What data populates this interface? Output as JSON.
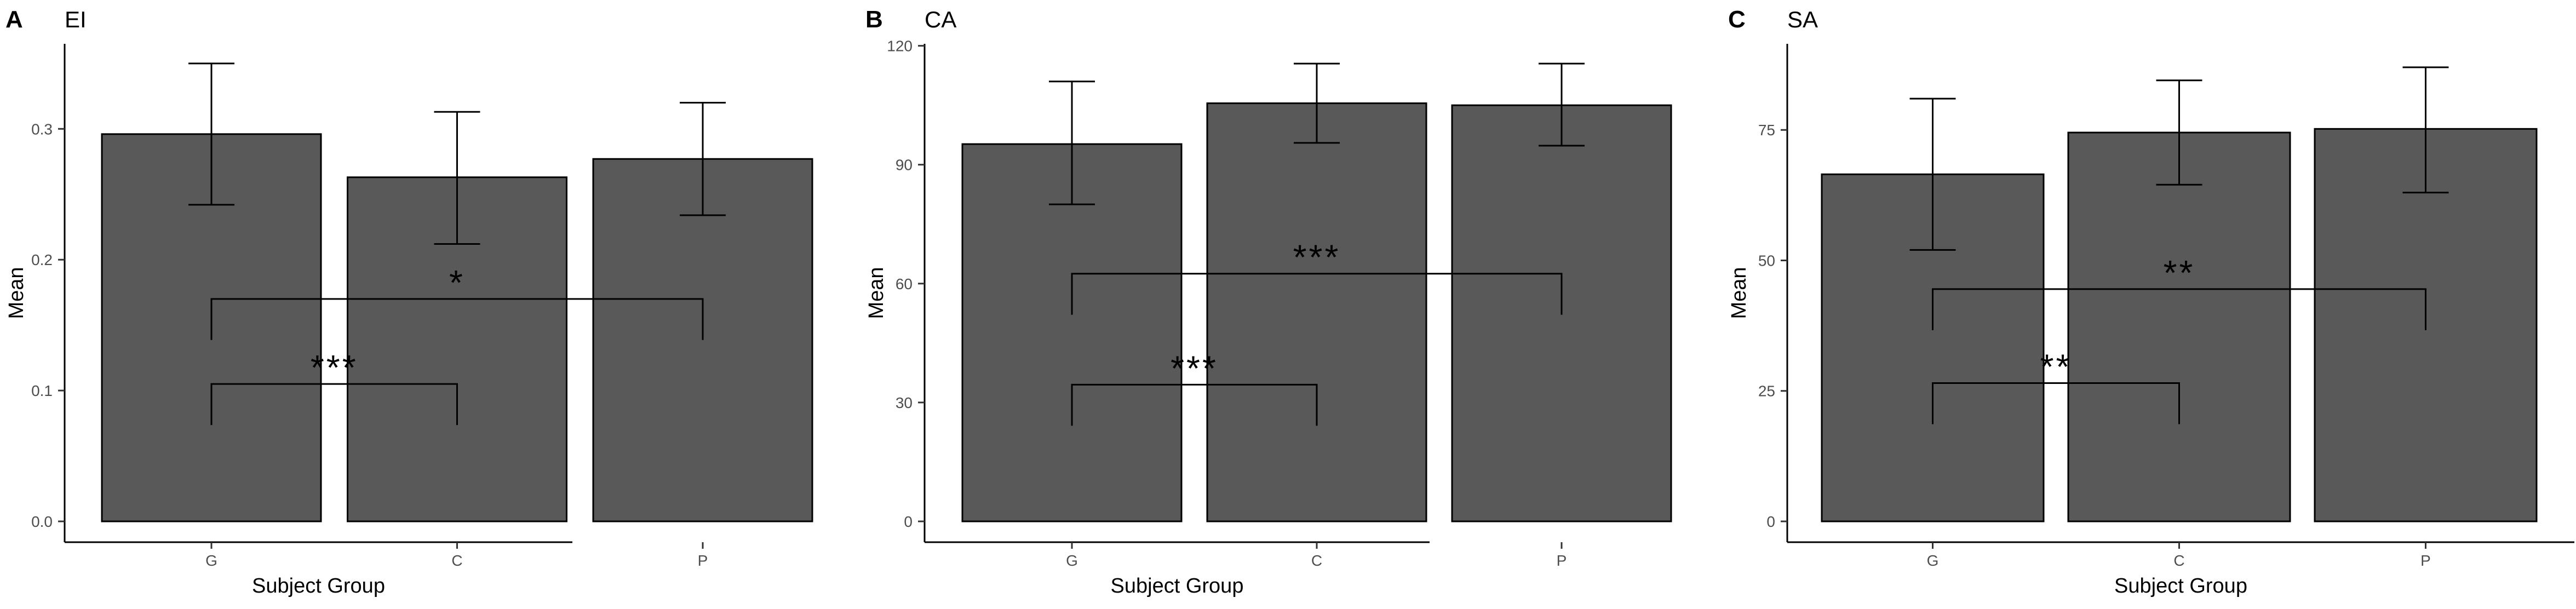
{
  "chart_data": [
    {
      "type": "bar",
      "panel_letter": "A",
      "title": "EI",
      "xlabel": "Subject Group",
      "ylabel": "Mean",
      "categories": [
        "G",
        "C",
        "P"
      ],
      "values": [
        0.296,
        0.263,
        0.277
      ],
      "error_upper": [
        0.35,
        0.313,
        0.32
      ],
      "error_lower": [
        0.242,
        0.212,
        0.234
      ],
      "ylim": [
        0,
        0.365
      ],
      "yticks": [
        0.0,
        0.1,
        0.2,
        0.3
      ],
      "ytick_labels": [
        "0.0",
        "0.1",
        "0.2",
        "0.3"
      ],
      "grid": false,
      "bar_color": "#595959",
      "significance": [
        {
          "from": "G",
          "to": "P",
          "y": 0.17,
          "label": "*"
        },
        {
          "from": "G",
          "to": "C",
          "y": 0.105,
          "label": "***"
        }
      ]
    },
    {
      "type": "bar",
      "panel_letter": "B",
      "title": "CA",
      "xlabel": "Subject Group",
      "ylabel": "Mean",
      "categories": [
        "G",
        "C",
        "P"
      ],
      "values": [
        95.2,
        105.5,
        105.0
      ],
      "error_upper": [
        111.0,
        115.5,
        115.5
      ],
      "error_lower": [
        80.0,
        95.5,
        94.8
      ],
      "ylim": [
        0,
        120.5
      ],
      "yticks": [
        0,
        30,
        60,
        90,
        120
      ],
      "ytick_labels": [
        "0",
        "30",
        "60",
        "90",
        "120"
      ],
      "grid": false,
      "bar_color": "#595959",
      "significance": [
        {
          "from": "G",
          "to": "P",
          "y": 62.5,
          "label": "***"
        },
        {
          "from": "G",
          "to": "C",
          "y": 34.5,
          "label": "***"
        }
      ]
    },
    {
      "type": "bar",
      "panel_letter": "C",
      "title": "SA",
      "xlabel": "Subject Group",
      "ylabel": "Mean",
      "categories": [
        "G",
        "C",
        "P"
      ],
      "values": [
        66.5,
        74.5,
        75.2
      ],
      "error_upper": [
        81.0,
        84.5,
        87.0
      ],
      "error_lower": [
        52.0,
        64.5,
        63.0
      ],
      "ylim": [
        0,
        91.5
      ],
      "yticks": [
        0,
        25,
        50,
        75
      ],
      "ytick_labels": [
        "0",
        "25",
        "50",
        "75"
      ],
      "grid": false,
      "bar_color": "#595959",
      "significance": [
        {
          "from": "G",
          "to": "P",
          "y": 44.5,
          "label": "**"
        },
        {
          "from": "G",
          "to": "C",
          "y": 26.5,
          "label": "**"
        }
      ]
    }
  ]
}
